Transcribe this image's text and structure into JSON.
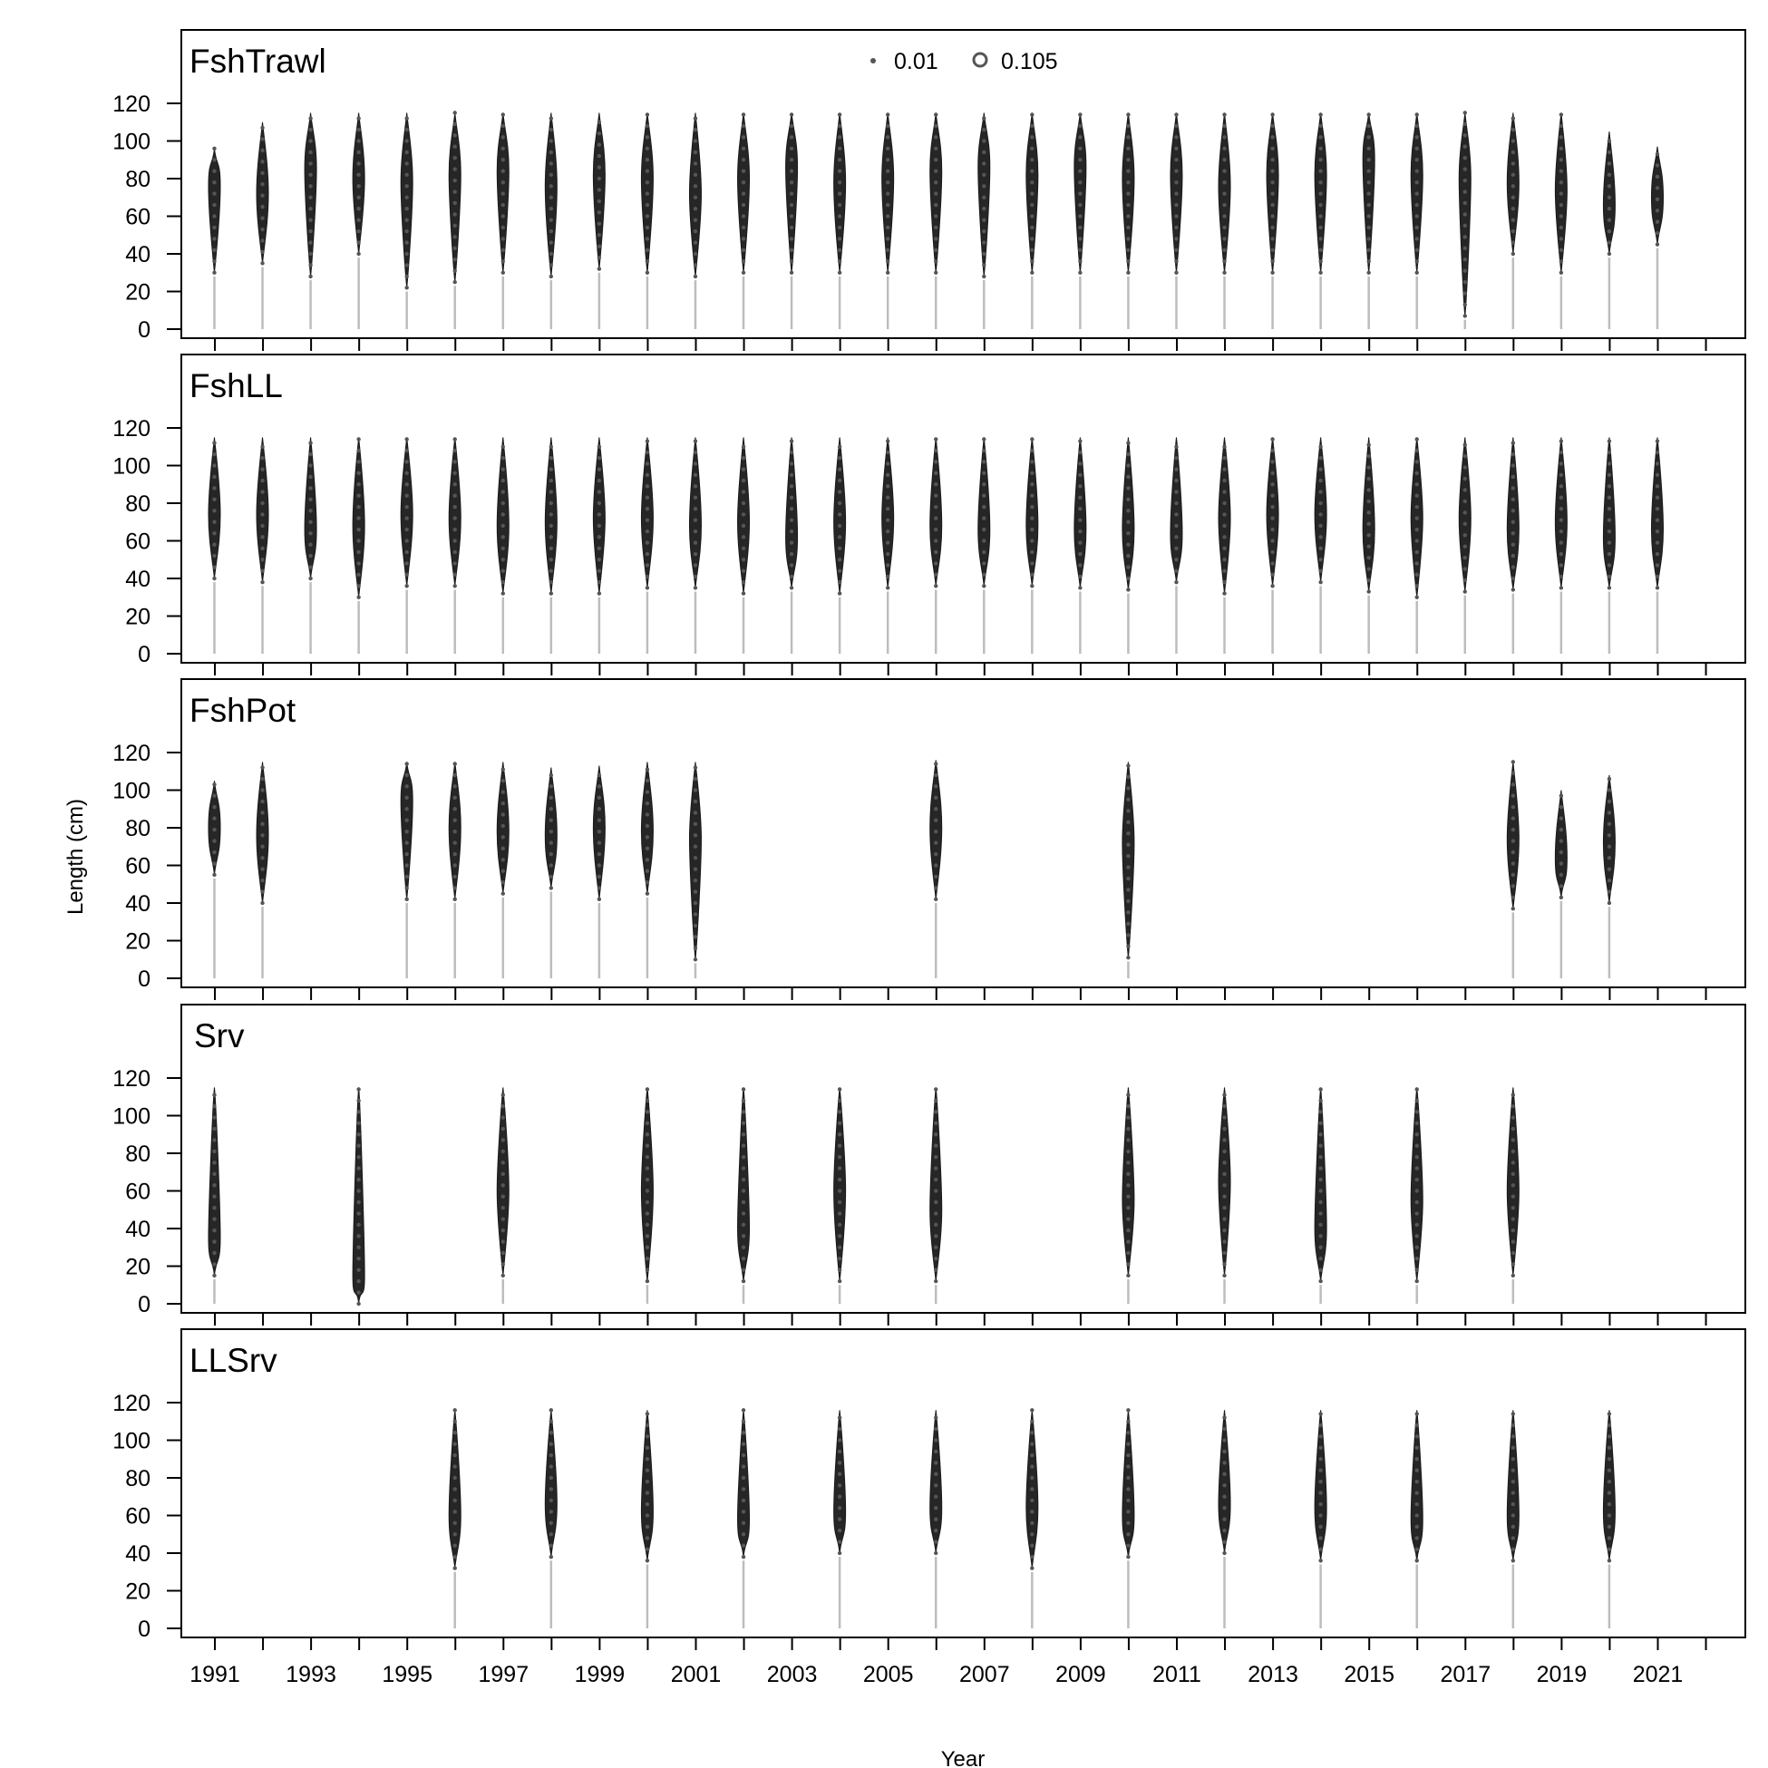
{
  "figure": {
    "ylabel": "Length (cm)",
    "xlabel": "Year",
    "legend": {
      "position": "top-center of first panel",
      "items": [
        {
          "label": "0.01",
          "size": "small"
        },
        {
          "label": "0.105",
          "size": "large"
        }
      ]
    },
    "x_tick_labels": [
      "1991",
      "1993",
      "1995",
      "1997",
      "1999",
      "2001",
      "2003",
      "2005",
      "2007",
      "2009",
      "2011",
      "2013",
      "2015",
      "2017",
      "2019",
      "2021"
    ],
    "y_tick_labels": [
      "0",
      "20",
      "40",
      "60",
      "80",
      "100",
      "120"
    ]
  },
  "colors": {
    "bubble_fill": "#262626",
    "stem": "#bdbdbd",
    "frame": "#000000"
  },
  "chart_data": {
    "type": "scatter",
    "description_type": "bubble plot of length composition by year",
    "x_range": [
      1991,
      2022
    ],
    "ylim": [
      0,
      120
    ],
    "y_ticks": [
      0,
      20,
      40,
      60,
      80,
      100,
      120
    ],
    "grid": false,
    "panels": [
      {
        "name": "FshTrawl",
        "years": [
          1991,
          1992,
          1993,
          1994,
          1995,
          1996,
          1997,
          1998,
          1999,
          2000,
          2001,
          2002,
          2003,
          2004,
          2005,
          2006,
          2007,
          2008,
          2009,
          2010,
          2011,
          2012,
          2013,
          2014,
          2015,
          2016,
          2017,
          2018,
          2019,
          2020,
          2021
        ],
        "modes": [
          76,
          72,
          85,
          80,
          78,
          82,
          84,
          76,
          82,
          80,
          72,
          80,
          86,
          78,
          80,
          84,
          86,
          82,
          86,
          80,
          82,
          76,
          82,
          82,
          90,
          82,
          80,
          78,
          74,
          66,
          70
        ],
        "min_len": [
          30,
          35,
          28,
          40,
          22,
          25,
          30,
          28,
          32,
          30,
          28,
          30,
          30,
          30,
          30,
          30,
          28,
          30,
          30,
          30,
          30,
          30,
          30,
          30,
          30,
          30,
          7,
          40,
          30,
          40,
          45
        ],
        "max_len": [
          96,
          110,
          115,
          115,
          115,
          115,
          115,
          115,
          115,
          115,
          115,
          115,
          115,
          115,
          115,
          115,
          115,
          115,
          115,
          115,
          115,
          115,
          115,
          115,
          115,
          115,
          115,
          115,
          115,
          105,
          97
        ]
      },
      {
        "name": "FshLL",
        "years": [
          1991,
          1992,
          1993,
          1994,
          1995,
          1996,
          1997,
          1998,
          1999,
          2000,
          2001,
          2002,
          2003,
          2004,
          2005,
          2006,
          2007,
          2008,
          2009,
          2010,
          2011,
          2012,
          2013,
          2014,
          2015,
          2016,
          2017,
          2018,
          2019,
          2020,
          2021
        ],
        "modes": [
          74,
          74,
          66,
          68,
          74,
          72,
          68,
          70,
          72,
          72,
          68,
          70,
          62,
          70,
          72,
          68,
          66,
          68,
          66,
          66,
          64,
          72,
          74,
          74,
          66,
          72,
          72,
          66,
          70,
          62,
          66
        ],
        "min_len": [
          40,
          38,
          40,
          30,
          36,
          36,
          32,
          32,
          32,
          35,
          35,
          32,
          35,
          32,
          35,
          36,
          36,
          36,
          35,
          34,
          38,
          32,
          36,
          38,
          33,
          30,
          33,
          34,
          35,
          35,
          35
        ],
        "max_len": [
          115,
          115,
          115,
          115,
          115,
          115,
          115,
          115,
          115,
          115,
          115,
          115,
          115,
          115,
          115,
          115,
          115,
          115,
          115,
          115,
          115,
          115,
          115,
          115,
          115,
          115,
          115,
          115,
          115,
          115,
          115
        ]
      },
      {
        "name": "FshPot",
        "years": [
          1991,
          1992,
          1995,
          1996,
          1997,
          1998,
          1999,
          2000,
          2001,
          2006,
          2010,
          2018,
          2019,
          2020
        ],
        "modes": [
          80,
          76,
          94,
          80,
          78,
          76,
          80,
          78,
          74,
          80,
          72,
          74,
          64,
          72
        ],
        "min_len": [
          55,
          40,
          42,
          42,
          45,
          48,
          42,
          45,
          10,
          42,
          11,
          37,
          43,
          40
        ],
        "max_len": [
          105,
          115,
          115,
          115,
          115,
          112,
          113,
          115,
          115,
          116,
          115,
          115,
          100,
          108
        ]
      },
      {
        "name": "Srv",
        "years": [
          1991,
          1994,
          1997,
          2000,
          2002,
          2004,
          2006,
          2010,
          2012,
          2014,
          2016,
          2018
        ],
        "modes": [
          35,
          15,
          60,
          60,
          40,
          60,
          50,
          55,
          65,
          40,
          55,
          60
        ],
        "min_len": [
          15,
          0,
          15,
          12,
          12,
          12,
          12,
          15,
          15,
          12,
          12,
          15
        ],
        "max_len": [
          115,
          115,
          115,
          115,
          115,
          115,
          115,
          115,
          115,
          115,
          115,
          115
        ]
      },
      {
        "name": "LLSrv",
        "years": [
          1996,
          1998,
          2000,
          2002,
          2004,
          2006,
          2008,
          2010,
          2012,
          2014,
          2016,
          2018,
          2020
        ],
        "modes": [
          60,
          66,
          62,
          58,
          62,
          64,
          64,
          60,
          66,
          64,
          58,
          60,
          62
        ],
        "min_len": [
          32,
          38,
          36,
          38,
          40,
          40,
          32,
          38,
          40,
          36,
          36,
          36,
          36
        ],
        "max_len": [
          116,
          116,
          116,
          116,
          116,
          116,
          116,
          116,
          116,
          116,
          116,
          116,
          116
        ]
      }
    ]
  }
}
